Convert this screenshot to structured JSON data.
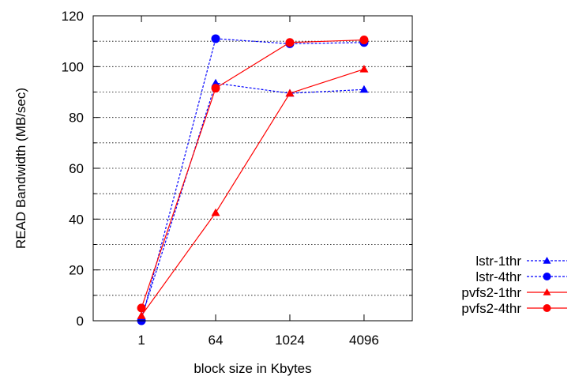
{
  "chart_data": {
    "type": "line",
    "categories": [
      "1",
      "64",
      "1024",
      "4096"
    ],
    "xlabel": "block size in Kbytes",
    "ylabel": "READ Bandwidth (MB/sec)",
    "ylim": [
      0,
      120
    ],
    "yticks": [
      0,
      20,
      40,
      60,
      80,
      100,
      120
    ],
    "grid": "horizontal-dotted",
    "legend_position": "right-bottom-outside",
    "series": [
      {
        "name": "lstr-1thr",
        "color": "#0000ff",
        "dash": "dotted",
        "marker": "triangle",
        "values": [
          1,
          93.5,
          89.5,
          91
        ]
      },
      {
        "name": "lstr-4thr",
        "color": "#0000ff",
        "dash": "dotted",
        "marker": "circle",
        "values": [
          0,
          111,
          109,
          109.5
        ]
      },
      {
        "name": "pvfs2-1thr",
        "color": "#ff0000",
        "dash": "solid",
        "marker": "triangle",
        "values": [
          2,
          42.5,
          89.5,
          99
        ]
      },
      {
        "name": "pvfs2-4thr",
        "color": "#ff0000",
        "dash": "solid",
        "marker": "circle",
        "values": [
          5,
          91.5,
          109.5,
          110.5
        ]
      }
    ]
  }
}
